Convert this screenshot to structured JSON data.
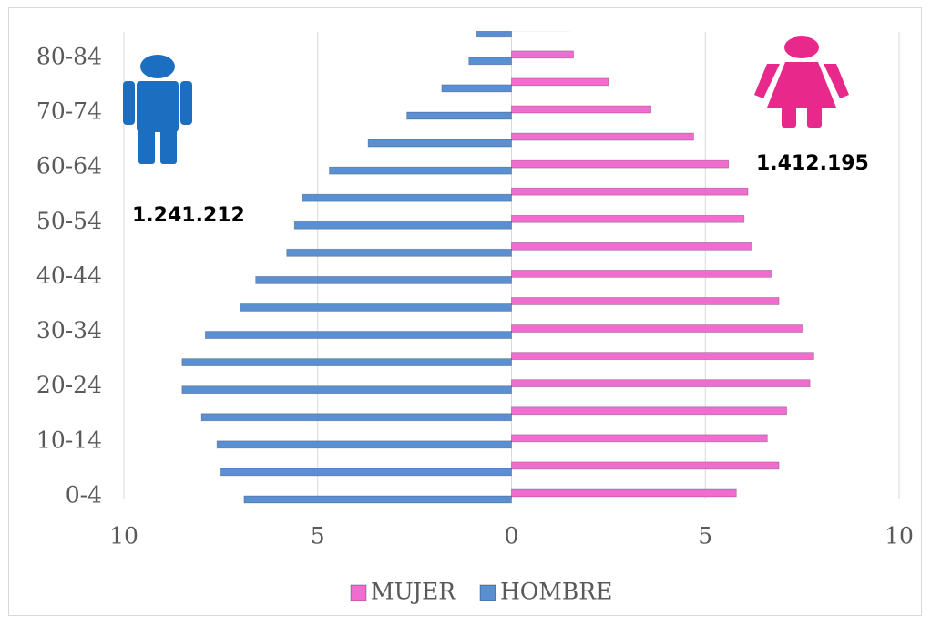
{
  "chart_data": {
    "type": "pyramid",
    "categories": [
      "0-4",
      null,
      "10-14",
      null,
      "20-24",
      null,
      "30-34",
      null,
      "40-44",
      null,
      "50-54",
      null,
      "60-64",
      null,
      "70-74",
      null,
      "80-84",
      null
    ],
    "series": [
      {
        "name": "MUJER",
        "color": "#f06ccf",
        "values": [
          5.8,
          6.9,
          6.6,
          7.1,
          7.7,
          7.8,
          7.5,
          6.9,
          6.7,
          6.2,
          6.0,
          6.1,
          5.6,
          4.7,
          3.6,
          2.5,
          1.6,
          1.5
        ]
      },
      {
        "name": "HOMBRE",
        "color": "#5a8fd2",
        "values": [
          -6.9,
          -7.5,
          -7.6,
          -8.0,
          -8.5,
          -8.5,
          -7.9,
          -7.0,
          -6.6,
          -5.8,
          -5.6,
          -5.4,
          -4.7,
          -3.7,
          -2.7,
          -1.8,
          -1.1,
          -0.9
        ]
      }
    ],
    "xlim": [
      -10,
      10
    ],
    "xticks": [
      {
        "value": -10,
        "label": "10"
      },
      {
        "value": -5,
        "label": "5"
      },
      0,
      5,
      {
        "value": 10,
        "label": "10"
      }
    ],
    "grid": true,
    "legend": "bottom",
    "annotations": [
      "1.241.212",
      "1.412.195"
    ]
  }
}
